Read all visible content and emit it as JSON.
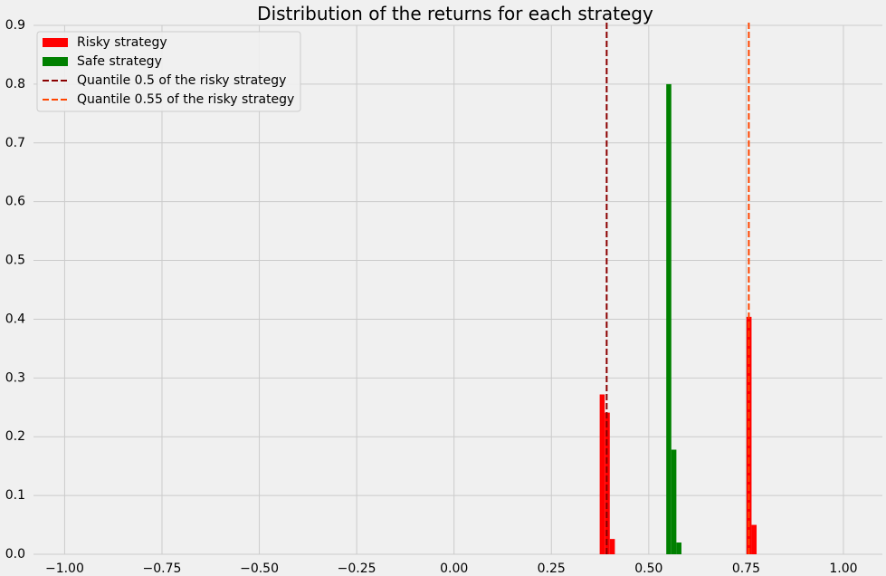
{
  "chart_data": {
    "type": "bar",
    "title": "Distribution of the returns for each strategy",
    "xlim": [
      -1.08,
      1.1
    ],
    "ylim": [
      0,
      0.9
    ],
    "grid": true,
    "x_ticks": [
      -1.0,
      -0.75,
      -0.5,
      -0.25,
      0.0,
      0.25,
      0.5,
      0.75,
      1.0
    ],
    "x_tick_labels": [
      "−1.00",
      "−0.75",
      "−0.50",
      "−0.25",
      "0.00",
      "0.25",
      "0.50",
      "0.75",
      "1.00"
    ],
    "y_ticks": [
      0.0,
      0.1,
      0.2,
      0.3,
      0.4,
      0.5,
      0.6,
      0.7,
      0.8,
      0.9
    ],
    "y_tick_labels": [
      "0.0",
      "0.1",
      "0.2",
      "0.3",
      "0.4",
      "0.5",
      "0.6",
      "0.7",
      "0.8",
      "0.9"
    ],
    "legend_position": "top-left",
    "series": [
      {
        "name": "Risky strategy",
        "kind": "hist",
        "color": "#ff0000",
        "bins": [
          {
            "x0": 0.374,
            "x1": 0.387,
            "value": 0.272
          },
          {
            "x0": 0.387,
            "x1": 0.4,
            "value": 0.241
          },
          {
            "x0": 0.4,
            "x1": 0.413,
            "value": 0.026
          },
          {
            "x0": 0.751,
            "x1": 0.764,
            "value": 0.404
          },
          {
            "x0": 0.764,
            "x1": 0.777,
            "value": 0.05
          }
        ]
      },
      {
        "name": "Safe strategy",
        "kind": "hist",
        "color": "#008000",
        "bins": [
          {
            "x0": 0.545,
            "x1": 0.558,
            "value": 0.8
          },
          {
            "x0": 0.558,
            "x1": 0.571,
            "value": 0.178
          },
          {
            "x0": 0.571,
            "x1": 0.584,
            "value": 0.02
          }
        ]
      },
      {
        "name": "Quantile 0.5 of the risky strategy",
        "kind": "vline",
        "color": "#8b0000",
        "x": 0.392
      },
      {
        "name": "Quantile 0.55 of the risky strategy",
        "kind": "vline",
        "color": "#ff4500",
        "x": 0.757
      }
    ]
  }
}
